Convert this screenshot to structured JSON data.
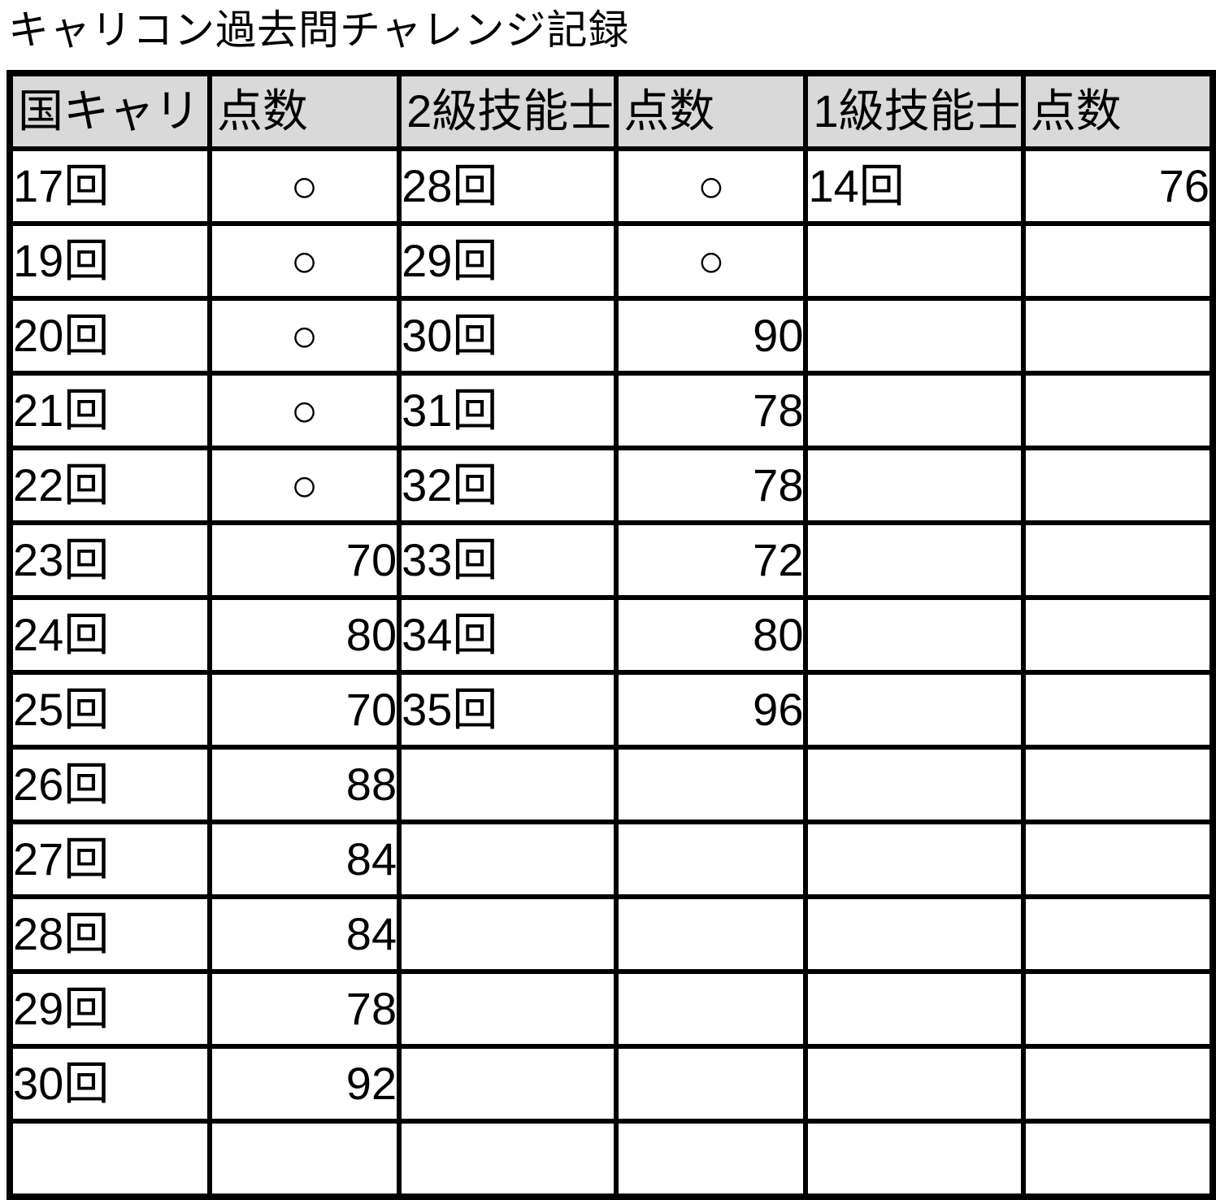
{
  "title": "キャリコン過去問チャレンジ記録",
  "table": {
    "headers": [
      "国キャリ",
      "点数",
      "2級技能士",
      "点数",
      "1級技能士",
      "点数"
    ],
    "pass_mark": "○",
    "header_fill_color": "#d9d9d9",
    "border_color": "#000000",
    "rows": [
      [
        "17回",
        "○",
        "28回",
        "○",
        "14回",
        "76"
      ],
      [
        "19回",
        "○",
        "29回",
        "○",
        "",
        ""
      ],
      [
        "20回",
        "○",
        "30回",
        "90",
        "",
        ""
      ],
      [
        "21回",
        "○",
        "31回",
        "78",
        "",
        ""
      ],
      [
        "22回",
        "○",
        "32回",
        "78",
        "",
        ""
      ],
      [
        "23回",
        "70",
        "33回",
        "72",
        "",
        ""
      ],
      [
        "24回",
        "80",
        "34回",
        "80",
        "",
        ""
      ],
      [
        "25回",
        "70",
        "35回",
        "96",
        "",
        ""
      ],
      [
        "26回",
        "88",
        "",
        "",
        "",
        ""
      ],
      [
        "27回",
        "84",
        "",
        "",
        "",
        ""
      ],
      [
        "28回",
        "84",
        "",
        "",
        "",
        ""
      ],
      [
        "29回",
        "78",
        "",
        "",
        "",
        ""
      ],
      [
        "30回",
        "92",
        "",
        "",
        "",
        ""
      ],
      [
        "",
        "",
        "",
        "",
        "",
        ""
      ]
    ]
  },
  "chart_data": {
    "type": "table",
    "title": "キャリコン過去問チャレンジ記録",
    "columns": [
      "国キャリ",
      "点数",
      "2級技能士",
      "点数",
      "1級技能士",
      "点数"
    ],
    "rows": [
      [
        "17回",
        "○",
        "28回",
        "○",
        "14回",
        "76"
      ],
      [
        "19回",
        "○",
        "29回",
        "○",
        "",
        ""
      ],
      [
        "20回",
        "○",
        "30回",
        "90",
        "",
        ""
      ],
      [
        "21回",
        "○",
        "31回",
        "78",
        "",
        ""
      ],
      [
        "22回",
        "○",
        "32回",
        "78",
        "",
        ""
      ],
      [
        "23回",
        "70",
        "33回",
        "72",
        "",
        ""
      ],
      [
        "24回",
        "80",
        "34回",
        "80",
        "",
        ""
      ],
      [
        "25回",
        "70",
        "35回",
        "96",
        "",
        ""
      ],
      [
        "26回",
        "88",
        "",
        "",
        "",
        ""
      ],
      [
        "27回",
        "84",
        "",
        "",
        "",
        ""
      ],
      [
        "28回",
        "84",
        "",
        "",
        "",
        ""
      ],
      [
        "29回",
        "78",
        "",
        "",
        "",
        ""
      ],
      [
        "30回",
        "92",
        "",
        "",
        "",
        ""
      ],
      [
        "",
        "",
        "",
        "",
        "",
        ""
      ]
    ]
  }
}
